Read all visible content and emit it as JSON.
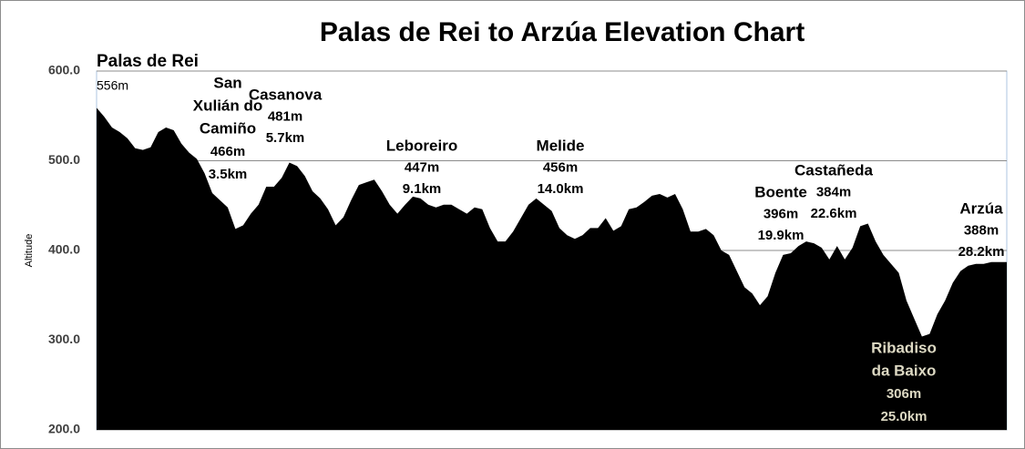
{
  "chart_data": {
    "type": "area",
    "title": "Palas de Rei to Arzúa Elevation Chart",
    "y_label": "Altitude",
    "color": "#000000",
    "grid": true,
    "ylim": [
      200,
      600
    ],
    "yticks": [
      {
        "value": 200,
        "label": "200.0"
      },
      {
        "value": 300,
        "label": "300.0"
      },
      {
        "value": 400,
        "label": "400.0"
      },
      {
        "value": 500,
        "label": "500.0"
      },
      {
        "value": 600,
        "label": "600.0"
      }
    ],
    "values": [
      559,
      549,
      537,
      532,
      525,
      514,
      512,
      515,
      532,
      537,
      534,
      519,
      509,
      502,
      486,
      464,
      456,
      448,
      424,
      428,
      441,
      451,
      471,
      471,
      481,
      498,
      494,
      483,
      466,
      458,
      446,
      428,
      437,
      456,
      473,
      476,
      479,
      466,
      451,
      441,
      451,
      460,
      458,
      451,
      448,
      451,
      451,
      446,
      441,
      448,
      446,
      425,
      410,
      410,
      421,
      436,
      451,
      458,
      451,
      444,
      425,
      417,
      413,
      417,
      425,
      425,
      436,
      422,
      427,
      446,
      448,
      454,
      461,
      463,
      459,
      463,
      446,
      421,
      421,
      424,
      417,
      400,
      395,
      377,
      359,
      352,
      339,
      349,
      375,
      395,
      397,
      405,
      410,
      408,
      403,
      390,
      405,
      390,
      403,
      427,
      430,
      410,
      395,
      385,
      375,
      344,
      324,
      304,
      307,
      329,
      344,
      364,
      377,
      383,
      385,
      385,
      387,
      387,
      387
    ],
    "annotations": [
      {
        "lines": [
          "Palas de Rei",
          "556m"
        ]
      },
      {
        "lines": [
          "San",
          "Xulián do",
          "Camiño",
          "466m",
          "3.5km"
        ]
      },
      {
        "lines": [
          "Casanova",
          "481m",
          "5.7km"
        ]
      },
      {
        "lines": [
          "Leboreiro",
          "447m",
          "9.1km"
        ]
      },
      {
        "lines": [
          "Melide",
          "456m",
          "14.0km"
        ]
      },
      {
        "lines": [
          "Boente",
          "396m",
          "19.9km"
        ]
      },
      {
        "lines": [
          "Castañeda",
          "384m",
          "22.6km"
        ]
      },
      {
        "lines": [
          "Ribadiso",
          "da Baixo",
          "306m",
          "25.0km"
        ]
      },
      {
        "lines": [
          "Arzúa",
          "388m",
          "28.2km"
        ]
      }
    ]
  }
}
